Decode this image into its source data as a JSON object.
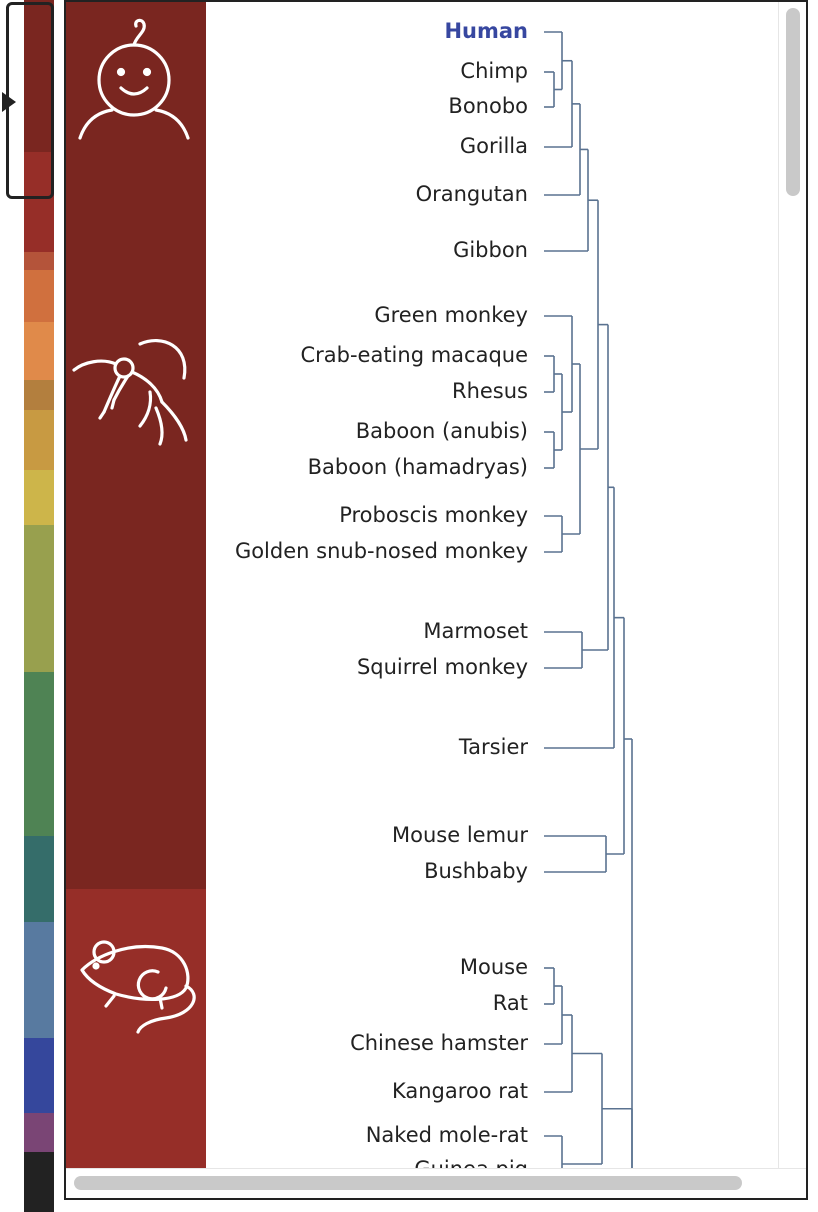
{
  "overview": {
    "segments": [
      {
        "color": "#7a2620",
        "clade": "primates"
      },
      {
        "color": "#962e28",
        "clade": "glires"
      },
      {
        "color": "#b4543a",
        "clade": ""
      },
      {
        "color": "#d0703e",
        "clade": ""
      },
      {
        "color": "#e08a4a",
        "clade": ""
      },
      {
        "color": "#b37f3e",
        "clade": ""
      },
      {
        "color": "#c89a42",
        "clade": ""
      },
      {
        "color": "#cdb54a",
        "clade": ""
      },
      {
        "color": "#98a04e",
        "clade": ""
      },
      {
        "color": "#4f8354",
        "clade": ""
      },
      {
        "color": "#356d6a",
        "clade": ""
      },
      {
        "color": "#587aa0",
        "clade": ""
      },
      {
        "color": "#35479c",
        "clade": ""
      },
      {
        "color": "#7a4575",
        "clade": ""
      },
      {
        "color": "#222222",
        "clade": ""
      }
    ],
    "viewport_indicator": "current-view"
  },
  "clades": [
    {
      "name": "primates",
      "icon": "human-baby-icon",
      "color": "#7a2620"
    },
    {
      "name": "primates",
      "icon": "monkey-icon",
      "color": "#7a2620"
    },
    {
      "name": "glires",
      "icon": "mouse-icon",
      "color": "#962e28"
    }
  ],
  "tree": {
    "line_color": "#5a7290",
    "highlight_color": "#3747a0",
    "species": [
      {
        "label": "Human",
        "highlight": true
      },
      {
        "label": "Chimp",
        "highlight": false
      },
      {
        "label": "Bonobo",
        "highlight": false
      },
      {
        "label": "Gorilla",
        "highlight": false
      },
      {
        "label": "Orangutan",
        "highlight": false
      },
      {
        "label": "Gibbon",
        "highlight": false
      },
      {
        "label": "Green monkey",
        "highlight": false
      },
      {
        "label": "Crab-eating macaque",
        "highlight": false
      },
      {
        "label": "Rhesus",
        "highlight": false
      },
      {
        "label": "Baboon (anubis)",
        "highlight": false
      },
      {
        "label": "Baboon (hamadryas)",
        "highlight": false
      },
      {
        "label": "Proboscis monkey",
        "highlight": false
      },
      {
        "label": "Golden snub-nosed monkey",
        "highlight": false
      },
      {
        "label": "Marmoset",
        "highlight": false
      },
      {
        "label": "Squirrel monkey",
        "highlight": false
      },
      {
        "label": "Tarsier",
        "highlight": false
      },
      {
        "label": "Mouse lemur",
        "highlight": false
      },
      {
        "label": "Bushbaby",
        "highlight": false
      },
      {
        "label": "Mouse",
        "highlight": false
      },
      {
        "label": "Rat",
        "highlight": false
      },
      {
        "label": "Chinese hamster",
        "highlight": false
      },
      {
        "label": "Kangaroo rat",
        "highlight": false
      },
      {
        "label": "Naked mole-rat",
        "highlight": false
      },
      {
        "label": "Guinea pig",
        "highlight": false
      }
    ]
  }
}
